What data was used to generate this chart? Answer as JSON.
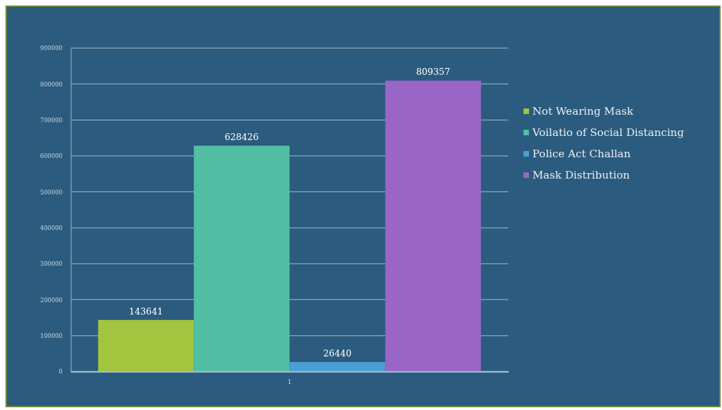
{
  "chart_data": {
    "type": "bar",
    "categories": [
      "1"
    ],
    "series": [
      {
        "name": "Not Wearing Mask",
        "color": "#a2c43f",
        "values": [
          143641
        ]
      },
      {
        "name": "Voilatio of Social Distancing",
        "color": "#52bea3",
        "values": [
          628426
        ]
      },
      {
        "name": "Police Act Challan",
        "color": "#4a9fd6",
        "values": [
          26440
        ]
      },
      {
        "name": "Mask Distribution",
        "color": "#9966c8",
        "values": [
          809357
        ]
      }
    ],
    "ylim": [
      0,
      900000
    ],
    "yticks": [
      0,
      100000,
      200000,
      300000,
      400000,
      500000,
      600000,
      700000,
      800000,
      900000
    ],
    "grid": "y",
    "legend": "right",
    "data_labels": true
  }
}
